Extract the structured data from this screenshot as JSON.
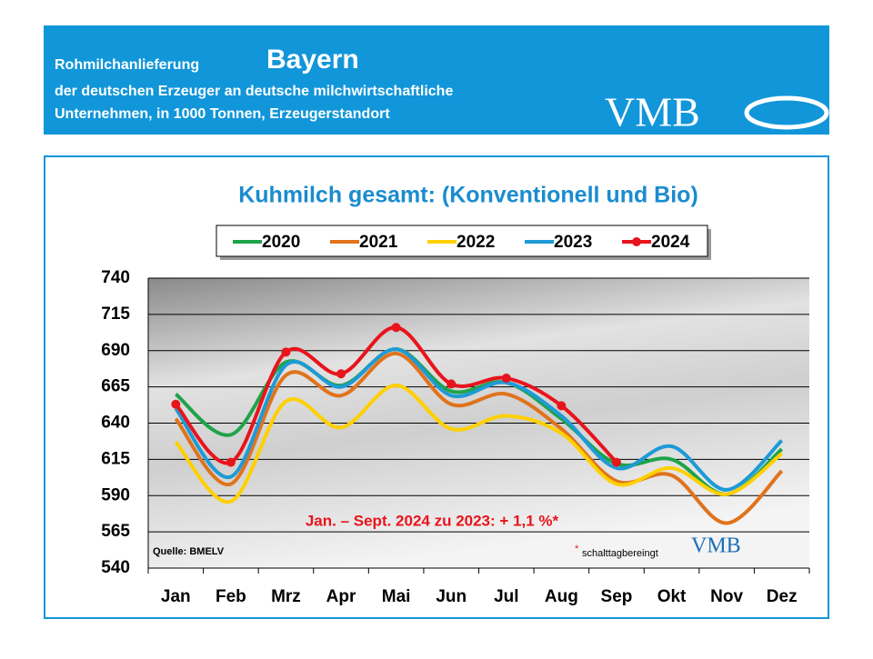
{
  "header": {
    "line1": "Rohmilchanlieferung",
    "region": "Bayern",
    "line2": "der deutschen Erzeuger an deutsche milchwirtschaftliche",
    "line3": "Unternehmen, in 1000 Tonnen, Erzeugerstandort",
    "logo": "VMB"
  },
  "chart_data": {
    "type": "line",
    "title": "Kuhmilch gesamt: (Konventionell und Bio)",
    "categories": [
      "Jan",
      "Feb",
      "Mrz",
      "Apr",
      "Mai",
      "Jun",
      "Jul",
      "Aug",
      "Sep",
      "Okt",
      "Nov",
      "Dez"
    ],
    "series": [
      {
        "name": "2020",
        "color": "#1fa34a",
        "values": [
          660,
          632,
          682,
          666,
          691,
          662,
          668,
          643,
          612,
          615,
          591,
          622
        ]
      },
      {
        "name": "2021",
        "color": "#e0731c",
        "values": [
          643,
          598,
          673,
          659,
          688,
          653,
          660,
          636,
          600,
          604,
          571,
          607
        ]
      },
      {
        "name": "2022",
        "color": "#ffd000",
        "values": [
          627,
          586,
          655,
          637,
          666,
          636,
          645,
          633,
          598,
          609,
          591,
          619
        ]
      },
      {
        "name": "2023",
        "color": "#1e9ad6",
        "values": [
          650,
          603,
          680,
          665,
          691,
          659,
          668,
          645,
          609,
          624,
          594,
          628
        ]
      },
      {
        "name": "2024",
        "color": "#e8141c",
        "markers": true,
        "values": [
          653,
          613,
          689,
          674,
          706,
          667,
          671,
          652,
          613,
          null,
          null,
          null
        ]
      }
    ],
    "ylim": [
      540,
      740
    ],
    "yticks": [
      540,
      565,
      590,
      615,
      640,
      665,
      690,
      715,
      740
    ],
    "grid": true,
    "annotation": "Jan. – Sept. 2024 zu 2023: + 1,1 %*",
    "source": "Quelle:  BMELV",
    "footnote_mark": "*",
    "footnote": "schalttagbereingt",
    "watermark": "VMB"
  }
}
